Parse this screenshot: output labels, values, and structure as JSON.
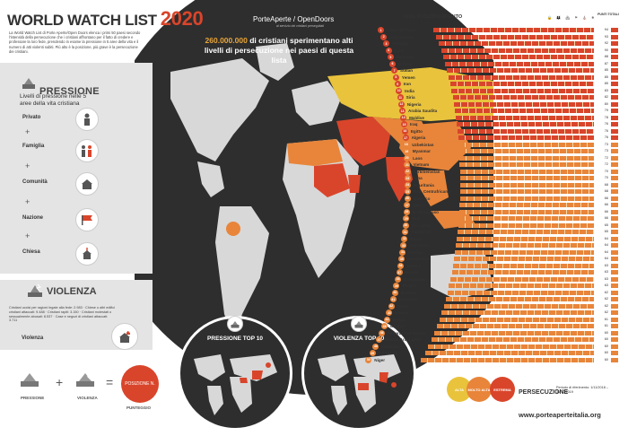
{
  "header": {
    "title": "WORLD WATCH LIST",
    "year": "2020",
    "intro": "La World Watch List di Porte Aperte/Open Doors elenca i primi 50 paesi secondo l'intensità della persecuzione che i cristiani affrontano per il fatto di credere e professare la loro fede, prendendo in esame la pressione in 5 aree della vita e il numero di atti violenti subiti. Più alto è la posizione, più grave è la persecuzione dei cristiani."
  },
  "org": {
    "name": "PorteAperte / OpenDoors",
    "tagline": "al servizio dei cristiani perseguitati"
  },
  "headline": {
    "number": "260.000.000",
    "text": "di cristiani sperimentano alti livelli di persecuzione nei paesi di questa lista"
  },
  "pressure": {
    "title": "PRESSIONE",
    "subtitle": "Livelli di pressione nelle 5 aree della vita cristiana",
    "levels": [
      "Privato",
      "Famiglia",
      "Comunità",
      "Nazione",
      "Chiesa"
    ]
  },
  "violence": {
    "title": "VIOLENZA",
    "text": "Cristiani uccisi per ragioni legate alla fede: 2.983 · Chiese o altri edifici cristiani attaccati: 9.488 · Cristiani rapiti: 3.150 · Cristiani molestati o sessualmente abusati: 8.537 · Case e negozi di cristiani attaccati: 3.711",
    "label": "Violenza"
  },
  "formula": {
    "pressure": "PRESSIONE",
    "plus": "+",
    "violence": "VIOLENZA",
    "equals": "=",
    "position": "POSIZIONE N.",
    "score": "PUNTEGGIO"
  },
  "minimaps": {
    "pressure": "PRESSIONE TOP 10",
    "violence": "VIOLENZA TOP 10"
  },
  "ranking": {
    "title": "WWL POSIZIONAMENTO",
    "score_header": "PUNTI TOTALI",
    "icons_label": "🔒 👪 🏘 ⚑ ⛪ ✸",
    "countries": [
      {
        "rank": "1",
        "name": "Corea del Nord",
        "score": "94",
        "level": "extreme"
      },
      {
        "rank": "2",
        "name": "Afghanistan",
        "score": "93",
        "level": "extreme"
      },
      {
        "rank": "3",
        "name": "Somalia",
        "score": "92",
        "level": "extreme"
      },
      {
        "rank": "4",
        "name": "Libia",
        "score": "90",
        "level": "extreme"
      },
      {
        "rank": "5",
        "name": "Pakistan",
        "score": "88",
        "level": "extreme"
      },
      {
        "rank": "6",
        "name": "Eritrea",
        "score": "87",
        "level": "extreme"
      },
      {
        "rank": "7",
        "name": "Sudan",
        "score": "85",
        "level": "extreme"
      },
      {
        "rank": "8",
        "name": "Yemen",
        "score": "85",
        "level": "extreme"
      },
      {
        "rank": "9",
        "name": "Iran",
        "score": "85",
        "level": "extreme"
      },
      {
        "rank": "10",
        "name": "India",
        "score": "83",
        "level": "extreme"
      },
      {
        "rank": "11",
        "name": "Siria",
        "score": "82",
        "level": "extreme"
      },
      {
        "rank": "12",
        "name": "Nigeria",
        "score": "80",
        "level": "extreme"
      },
      {
        "rank": "13",
        "name": "Arabia Saudita",
        "score": "79",
        "level": "extreme"
      },
      {
        "rank": "14",
        "name": "Maldive",
        "score": "78",
        "level": "extreme"
      },
      {
        "rank": "15",
        "name": "Iraq",
        "score": "76",
        "level": "extreme"
      },
      {
        "rank": "16",
        "name": "Egitto",
        "score": "76",
        "level": "extreme"
      },
      {
        "rank": "17",
        "name": "Algeria",
        "score": "76",
        "level": "extreme"
      },
      {
        "rank": "18",
        "name": "Uzbekistan",
        "score": "73",
        "level": "very"
      },
      {
        "rank": "19",
        "name": "Myanmar",
        "score": "73",
        "level": "very"
      },
      {
        "rank": "20",
        "name": "Laos",
        "score": "72",
        "level": "very"
      },
      {
        "rank": "21",
        "name": "Vietnam",
        "score": "72",
        "level": "very"
      },
      {
        "rank": "22",
        "name": "Turkmenistan",
        "score": "70",
        "level": "very"
      },
      {
        "rank": "23",
        "name": "Cina",
        "score": "70",
        "level": "very"
      },
      {
        "rank": "24",
        "name": "Mauritania",
        "score": "68",
        "level": "very"
      },
      {
        "rank": "25",
        "name": "Rep. Centrafricana",
        "score": "68",
        "level": "very"
      },
      {
        "rank": "26",
        "name": "Marocco",
        "score": "66",
        "level": "very"
      },
      {
        "rank": "27",
        "name": "Qatar",
        "score": "66",
        "level": "very"
      },
      {
        "rank": "28",
        "name": "Burkina Faso",
        "score": "66",
        "level": "very"
      },
      {
        "rank": "29",
        "name": "Mali",
        "score": "66",
        "level": "very"
      },
      {
        "rank": "30",
        "name": "Sri Lanka",
        "score": "65",
        "level": "very"
      },
      {
        "rank": "31",
        "name": "Tagikistan",
        "score": "65",
        "level": "very"
      },
      {
        "rank": "32",
        "name": "Nepal",
        "score": "64",
        "level": "very"
      },
      {
        "rank": "33",
        "name": "Giordania",
        "score": "64",
        "level": "very"
      },
      {
        "rank": "34",
        "name": "Tunisia",
        "score": "64",
        "level": "very"
      },
      {
        "rank": "35",
        "name": "Kazakistan",
        "score": "64",
        "level": "very"
      },
      {
        "rank": "36",
        "name": "Turchia",
        "score": "63",
        "level": "very"
      },
      {
        "rank": "37",
        "name": "Brunei",
        "score": "63",
        "level": "very"
      },
      {
        "rank": "38",
        "name": "Bangladesh",
        "score": "63",
        "level": "very"
      },
      {
        "rank": "39",
        "name": "Etiopia",
        "score": "63",
        "level": "very"
      },
      {
        "rank": "40",
        "name": "Malesia",
        "score": "62",
        "level": "very"
      },
      {
        "rank": "41",
        "name": "Colombia",
        "score": "62",
        "level": "very"
      },
      {
        "rank": "42",
        "name": "Oman",
        "score": "62",
        "level": "very"
      },
      {
        "rank": "43",
        "name": "Kuwait",
        "score": "62",
        "level": "very"
      },
      {
        "rank": "44",
        "name": "Kenya",
        "score": "61",
        "level": "very"
      },
      {
        "rank": "45",
        "name": "Bhutan",
        "score": "61",
        "level": "very"
      },
      {
        "rank": "46",
        "name": "Federazione Russa",
        "score": "60",
        "level": "very"
      },
      {
        "rank": "47",
        "name": "Emirati Arabi Uniti",
        "score": "60",
        "level": "very"
      },
      {
        "rank": "48",
        "name": "Camerun",
        "score": "60",
        "level": "very"
      },
      {
        "rank": "49",
        "name": "Indonesia",
        "score": "60",
        "level": "very"
      },
      {
        "rank": "50",
        "name": "Niger",
        "score": "60",
        "level": "very"
      }
    ]
  },
  "legend": {
    "high": "ALTA",
    "very_high": "MOLTO ALTA",
    "extreme": "ESTREMA",
    "title": "PERSECUZIONE",
    "period": "Periodo di riferimento: 1/11/2018 – 31/10/2019",
    "website": "www.porteaperteitalia.org"
  },
  "colors": {
    "extreme": "#d9452b",
    "very_high": "#e8853a",
    "high": "#e9c33c",
    "land": "#d8d8d8",
    "ocean": "#2e2e2e"
  }
}
